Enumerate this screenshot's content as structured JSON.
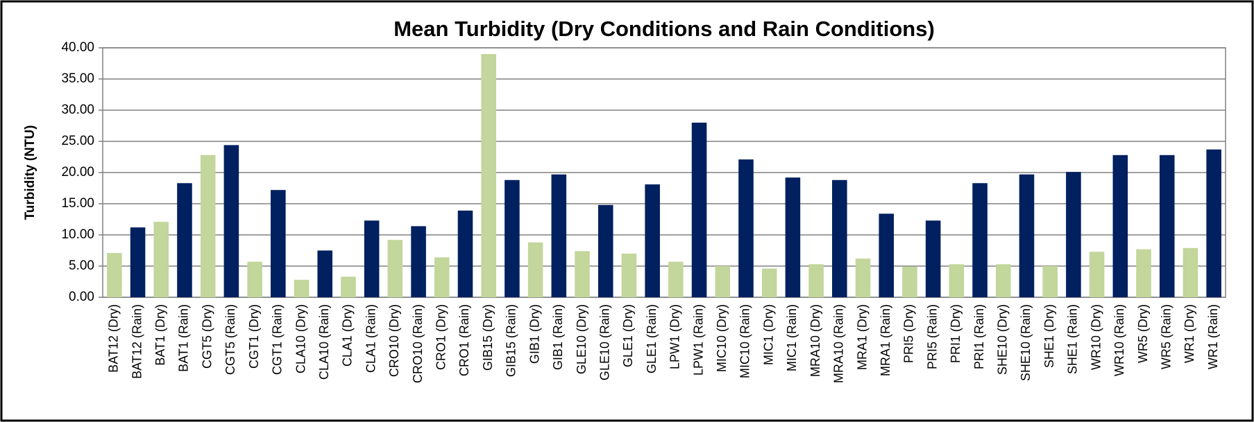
{
  "chart_data": {
    "type": "bar",
    "title": "Mean Turbidity (Dry Conditions and Rain Conditions)",
    "y_label": "Turbidity (NTU)",
    "categories": [
      "BAT12  (Dry)",
      "BAT12  (Rain)",
      "BAT1  (Dry)",
      "BAT1  (Rain)",
      "CGT5  (Dry)",
      "CGT5  (Rain)",
      "CGT1  (Dry)",
      "CGT1  (Rain)",
      "CLA10  (Dry)",
      "CLA10  (Rain)",
      "CLA1  (Dry)",
      "CLA1  (Rain)",
      "CRO10 (Dry)",
      "CRO10 (Rain)",
      "CRO1  (Dry)",
      "CRO1  (Rain)",
      "GIB15  (Dry)",
      "GIB15  (Rain)",
      "GIB1  (Dry)",
      "GIB1  (Rain)",
      "GLE10  (Dry)",
      "GLE10  (Rain)",
      "GLE1  (Dry)",
      "GLE1  (Rain)",
      "LPW1  (Dry)",
      "LPW1  (Rain)",
      "MIC10  (Dry)",
      "MIC10  (Rain)",
      "MIC1  (Dry)",
      "MIC1  (Rain)",
      "MRA10  (Dry)",
      "MRA10  (Rain)",
      "MRA1  (Dry)",
      "MRA1  (Rain)",
      "PRI5  (Dry)",
      "PRI5  (Rain)",
      "PRI1  (Dry)",
      "PRI1  (Rain)",
      "SHE10  (Dry)",
      "SHE10  (Rain)",
      "SHE1  (Dry)",
      "SHE1  (Rain)",
      "WR10  (Dry)",
      "WR10 (Rain)",
      "WR5  (Dry)",
      "WR5  (Rain)",
      "WR1  (Dry)",
      "WR1  (Rain)"
    ],
    "values": [
      7.1,
      11.2,
      12.1,
      18.3,
      22.8,
      24.4,
      5.7,
      17.2,
      2.8,
      7.5,
      3.3,
      12.3,
      9.2,
      11.4,
      6.4,
      13.9,
      39.0,
      18.8,
      8.8,
      19.7,
      7.4,
      14.8,
      7.0,
      18.1,
      5.7,
      28.0,
      5.0,
      22.1,
      4.6,
      19.2,
      5.3,
      18.8,
      6.2,
      13.4,
      4.9,
      12.3,
      5.3,
      18.3,
      5.3,
      19.7,
      5.0,
      20.1,
      7.3,
      22.8,
      7.7,
      22.8,
      7.9,
      23.7
    ],
    "colors": [
      "#c3d69b",
      "#002060"
    ],
    "ylim": [
      0,
      40
    ],
    "yticks": [
      {
        "value": 0,
        "label": "0.00"
      },
      {
        "value": 5,
        "label": "5.00"
      },
      {
        "value": 10,
        "label": "10.00"
      },
      {
        "value": 15,
        "label": "15.00"
      },
      {
        "value": 20,
        "label": "20.00"
      },
      {
        "value": 25,
        "label": "25.00"
      },
      {
        "value": 30,
        "label": "30.00"
      },
      {
        "value": 35,
        "label": "35.00"
      },
      {
        "value": 40,
        "label": "40.00"
      }
    ],
    "grid": true
  }
}
